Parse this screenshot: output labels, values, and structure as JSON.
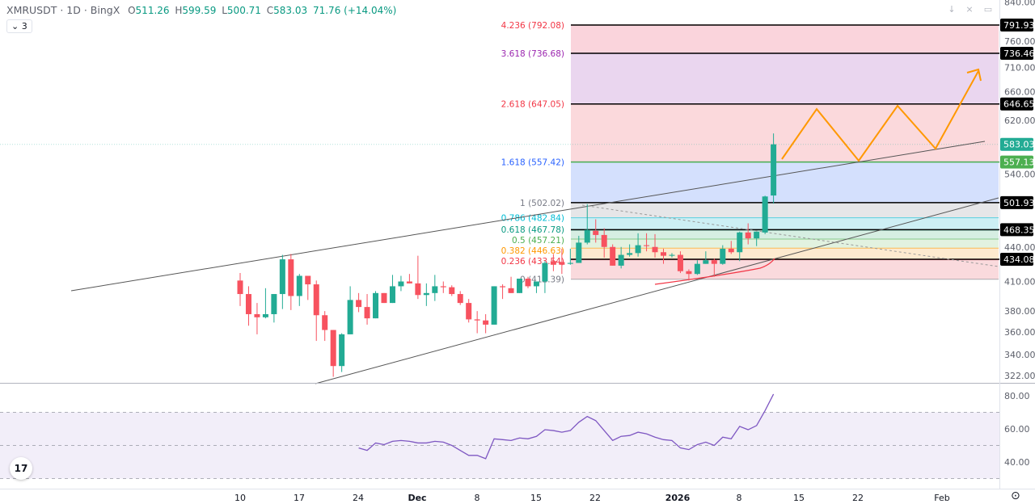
{
  "header": {
    "symbol": "XMRUSDT · 1D · BingX",
    "o_label": "O",
    "o": "511.26",
    "h_label": "H",
    "h": "599.59",
    "l_label": "L",
    "l": "500.71",
    "c_label": "C",
    "c": "583.03",
    "change": "71.76 (+14.04%)"
  },
  "indicator_toggle": {
    "icon": "chevron-down-icon",
    "count": "3"
  },
  "toolbar_icons": [
    "arrow-down-icon",
    "collapse-icon",
    "fullscreen-icon"
  ],
  "logo": "TV",
  "colors": {
    "up": "#22ab94",
    "down": "#f7525f",
    "rsi": "#7e57c2",
    "fib_line": "#000000",
    "level_557": "#4caf50"
  },
  "price_axis": {
    "scale": "log",
    "ticks": [
      "840.00",
      "760.00",
      "710.00",
      "660.00",
      "620.00",
      "540.00",
      "440.00",
      "410.00",
      "380.00",
      "360.00",
      "340.00",
      "322.00"
    ],
    "level_labels": [
      {
        "value": "791.93",
        "color": "#000000"
      },
      {
        "value": "736.46",
        "color": "#000000"
      },
      {
        "value": "646.65",
        "color": "#000000"
      },
      {
        "value": "583.03",
        "color": "#22ab94"
      },
      {
        "value": "557.13",
        "color": "#4caf50"
      },
      {
        "value": "501.93",
        "color": "#000000"
      },
      {
        "value": "468.35",
        "color": "#000000"
      },
      {
        "value": "434.08",
        "color": "#000000"
      }
    ]
  },
  "rsi_axis": {
    "ticks": [
      "80.00",
      "60.00",
      "40.00"
    ],
    "band": [
      30,
      70
    ],
    "mid": 50
  },
  "time_axis": [
    {
      "label": "10",
      "bold": false
    },
    {
      "label": "17",
      "bold": false
    },
    {
      "label": "24",
      "bold": false
    },
    {
      "label": "Dec",
      "bold": true
    },
    {
      "label": "8",
      "bold": false
    },
    {
      "label": "15",
      "bold": false
    },
    {
      "label": "22",
      "bold": false
    },
    {
      "label": "2026",
      "bold": true
    },
    {
      "label": "8",
      "bold": false
    },
    {
      "label": "15",
      "bold": false
    },
    {
      "label": "22",
      "bold": false
    },
    {
      "label": "Feb",
      "bold": false
    }
  ],
  "fib_levels": [
    {
      "label": "4.236 (792.08)",
      "value": 792.08,
      "color": "#f23645",
      "fill": "#fad4dc"
    },
    {
      "label": "3.618 (736.68)",
      "value": 736.68,
      "color": "#9c27b0",
      "fill": "#ead6ef"
    },
    {
      "label": "2.618 (647.05)",
      "value": 647.05,
      "color": "#f23645",
      "fill": "#fbd9dc"
    },
    {
      "label": "1.618 (557.42)",
      "value": 557.42,
      "color": "#2962ff",
      "fill": "#d4e0fd"
    },
    {
      "label": "1 (502.02)",
      "value": 502.02,
      "color": "#787b86",
      "fill": "#e6e6e8"
    },
    {
      "label": "0.786 (482.84)",
      "value": 482.84,
      "color": "#00bcd4",
      "fill": "#cdeff4"
    },
    {
      "label": "0.618 (467.78)",
      "value": 467.78,
      "color": "#089981",
      "fill": "#d6eee2"
    },
    {
      "label": "0.5 (457.21)",
      "value": 457.21,
      "color": "#4caf50",
      "fill": "#e2f2e0"
    },
    {
      "label": "0.382 (446.63)",
      "value": 446.63,
      "color": "#ff9800",
      "fill": "#fdeacf"
    },
    {
      "label": "0.236 (433.54)",
      "value": 433.54,
      "color": "#f23645",
      "fill": "#fadadd"
    },
    {
      "label": "0 (412.39)",
      "value": 412.39,
      "color": "#787b86",
      "fill": null
    }
  ],
  "chart_data": {
    "type": "candlestick",
    "symbol": "XMRUSDT",
    "interval": "1D",
    "y_scale": "log",
    "ylim": [
      318,
      842
    ],
    "candles": [
      [
        "Nov 10",
        411,
        419,
        385,
        397
      ],
      [
        "Nov 11",
        397,
        405,
        366,
        377
      ],
      [
        "Nov 12",
        377,
        388,
        358,
        374
      ],
      [
        "Nov 13",
        374,
        403,
        373,
        377
      ],
      [
        "Nov 14",
        377,
        397,
        369,
        397
      ],
      [
        "Nov 15",
        397,
        439,
        382,
        434
      ],
      [
        "Nov 16",
        434,
        440,
        381,
        395
      ],
      [
        "Nov 17",
        395,
        418,
        385,
        416
      ],
      [
        "Nov 18",
        416,
        416,
        391,
        407
      ],
      [
        "Nov 19",
        407,
        411,
        352,
        376
      ],
      [
        "Nov 20",
        376,
        380,
        352,
        362
      ],
      [
        "Nov 21",
        362,
        362,
        321,
        330
      ],
      [
        "Nov 22",
        330,
        359,
        325,
        358
      ],
      [
        "Nov 23",
        358,
        405,
        358,
        391
      ],
      [
        "Nov 24",
        391,
        398,
        379,
        384
      ],
      [
        "Nov 25",
        384,
        397,
        367,
        373
      ],
      [
        "Nov 26",
        373,
        400,
        373,
        398
      ],
      [
        "Nov 27",
        398,
        398,
        388,
        388
      ],
      [
        "Nov 28",
        388,
        417,
        388,
        405
      ],
      [
        "Nov 29",
        405,
        416,
        400,
        410
      ],
      [
        "Nov 30",
        410,
        418,
        408,
        408
      ],
      [
        "Dec 1",
        408,
        438,
        392,
        396
      ],
      [
        "Dec 2",
        396,
        408,
        385,
        398
      ],
      [
        "Dec 3",
        398,
        417,
        390,
        405
      ],
      [
        "Dec 4",
        405,
        410,
        398,
        404
      ],
      [
        "Dec 5",
        404,
        406,
        395,
        397
      ],
      [
        "Dec 6",
        397,
        400,
        386,
        388
      ],
      [
        "Dec 7",
        388,
        392,
        369,
        372
      ],
      [
        "Dec 8",
        372,
        380,
        359,
        371
      ],
      [
        "Dec 9",
        371,
        377,
        359,
        367
      ],
      [
        "Dec 10",
        367,
        405,
        367,
        405
      ],
      [
        "Dec 11",
        405,
        407,
        392,
        404
      ],
      [
        "Dec 12",
        403,
        415,
        398,
        398
      ],
      [
        "Dec 13",
        398,
        413,
        398,
        413
      ],
      [
        "Dec 14",
        413,
        415,
        403,
        405
      ],
      [
        "Dec 15",
        405,
        410,
        398,
        410
      ],
      [
        "Dec 16",
        410,
        432,
        398,
        430
      ],
      [
        "Dec 17",
        432,
        440,
        421,
        428
      ],
      [
        "Dec 18",
        431,
        446,
        418,
        428
      ],
      [
        "Dec 19",
        429,
        446,
        428,
        430
      ],
      [
        "Dec 20",
        430,
        461,
        430,
        453
      ],
      [
        "Dec 21",
        453,
        500,
        451,
        468
      ],
      [
        "Dec 22",
        467,
        481,
        453,
        462
      ],
      [
        "Dec 23",
        462,
        470,
        436,
        448
      ],
      [
        "Dec 24",
        448,
        451,
        427,
        427
      ],
      [
        "Dec 25",
        427,
        448,
        424,
        439
      ],
      [
        "Dec 26",
        439,
        451,
        437,
        441
      ],
      [
        "Dec 27",
        441,
        464,
        437,
        450
      ],
      [
        "Dec 28",
        450,
        464,
        443,
        449
      ],
      [
        "Dec 29",
        448,
        463,
        436,
        442
      ],
      [
        "Dec 30",
        442,
        446,
        429,
        438
      ],
      [
        "Dec 31",
        438,
        441,
        436,
        439
      ],
      [
        "Jan 1",
        439,
        443,
        419,
        421
      ],
      [
        "Jan 2",
        421,
        423,
        411,
        418
      ],
      [
        "Jan 3",
        418,
        433,
        417,
        429
      ],
      [
        "Jan 4",
        429,
        443,
        429,
        433
      ],
      [
        "Jan 5",
        433,
        435,
        415,
        429
      ],
      [
        "Jan 6",
        429,
        450,
        428,
        446
      ],
      [
        "Jan 7",
        446,
        455,
        440,
        442
      ],
      [
        "Jan 8",
        442,
        466,
        432,
        465
      ],
      [
        "Jan 9",
        465,
        476,
        451,
        458
      ],
      [
        "Jan 10",
        458,
        466,
        449,
        466
      ],
      [
        "Jan 11",
        465,
        511,
        463,
        510
      ],
      [
        "Jan 12",
        511.26,
        599.59,
        500.71,
        583.03
      ]
    ],
    "rsi": {
      "start": "Nov 24",
      "values": [
        48.5,
        47,
        51.5,
        50.5,
        52.5,
        53,
        52.5,
        51.5,
        51.5,
        52.5,
        52,
        50,
        47,
        44,
        44,
        42,
        54,
        53.5,
        53,
        54.5,
        54,
        55.5,
        59.5,
        59,
        58,
        59,
        64,
        67.5,
        65,
        59,
        53,
        55.5,
        56,
        58,
        57,
        55,
        53.5,
        53,
        48.5,
        47.5,
        50.5,
        52,
        50,
        55,
        54,
        61.5,
        59.5,
        62,
        71,
        81
      ],
      "ylim": [
        25,
        85
      ]
    }
  }
}
